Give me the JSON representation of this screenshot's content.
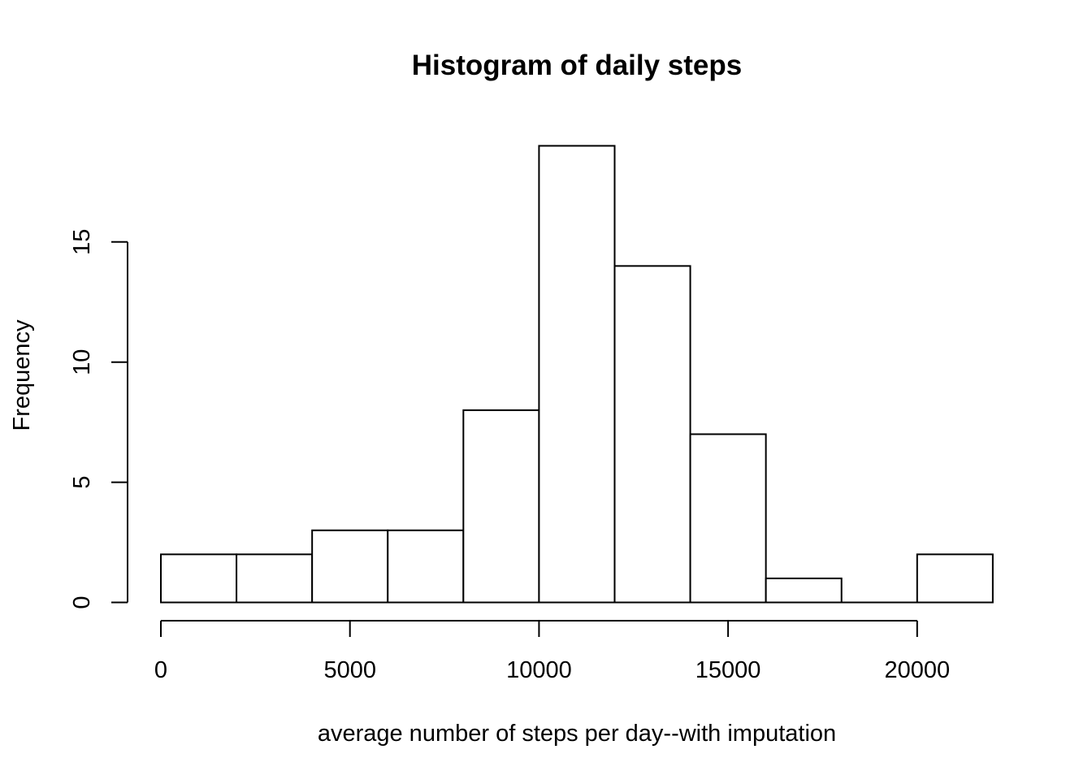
{
  "chart_data": {
    "type": "bar",
    "title": "Histogram of daily steps",
    "xlabel": "average number of steps per day--with imputation",
    "ylabel": "Frequency",
    "bins": [
      {
        "start": 0,
        "end": 2000,
        "count": 2
      },
      {
        "start": 2000,
        "end": 4000,
        "count": 2
      },
      {
        "start": 4000,
        "end": 6000,
        "count": 3
      },
      {
        "start": 6000,
        "end": 8000,
        "count": 3
      },
      {
        "start": 8000,
        "end": 10000,
        "count": 8
      },
      {
        "start": 10000,
        "end": 12000,
        "count": 19
      },
      {
        "start": 12000,
        "end": 14000,
        "count": 14
      },
      {
        "start": 14000,
        "end": 16000,
        "count": 7
      },
      {
        "start": 16000,
        "end": 18000,
        "count": 1
      },
      {
        "start": 18000,
        "end": 20000,
        "count": 0
      },
      {
        "start": 20000,
        "end": 22000,
        "count": 2
      }
    ],
    "x_ticks": [
      "0",
      "5000",
      "10000",
      "15000",
      "20000"
    ],
    "y_ticks": [
      "0",
      "5",
      "10",
      "15"
    ],
    "xlim": [
      0,
      22000
    ],
    "ylim": [
      0,
      19
    ],
    "grid": false,
    "bar_fill": "#ffffff",
    "bar_stroke": "#000000"
  }
}
